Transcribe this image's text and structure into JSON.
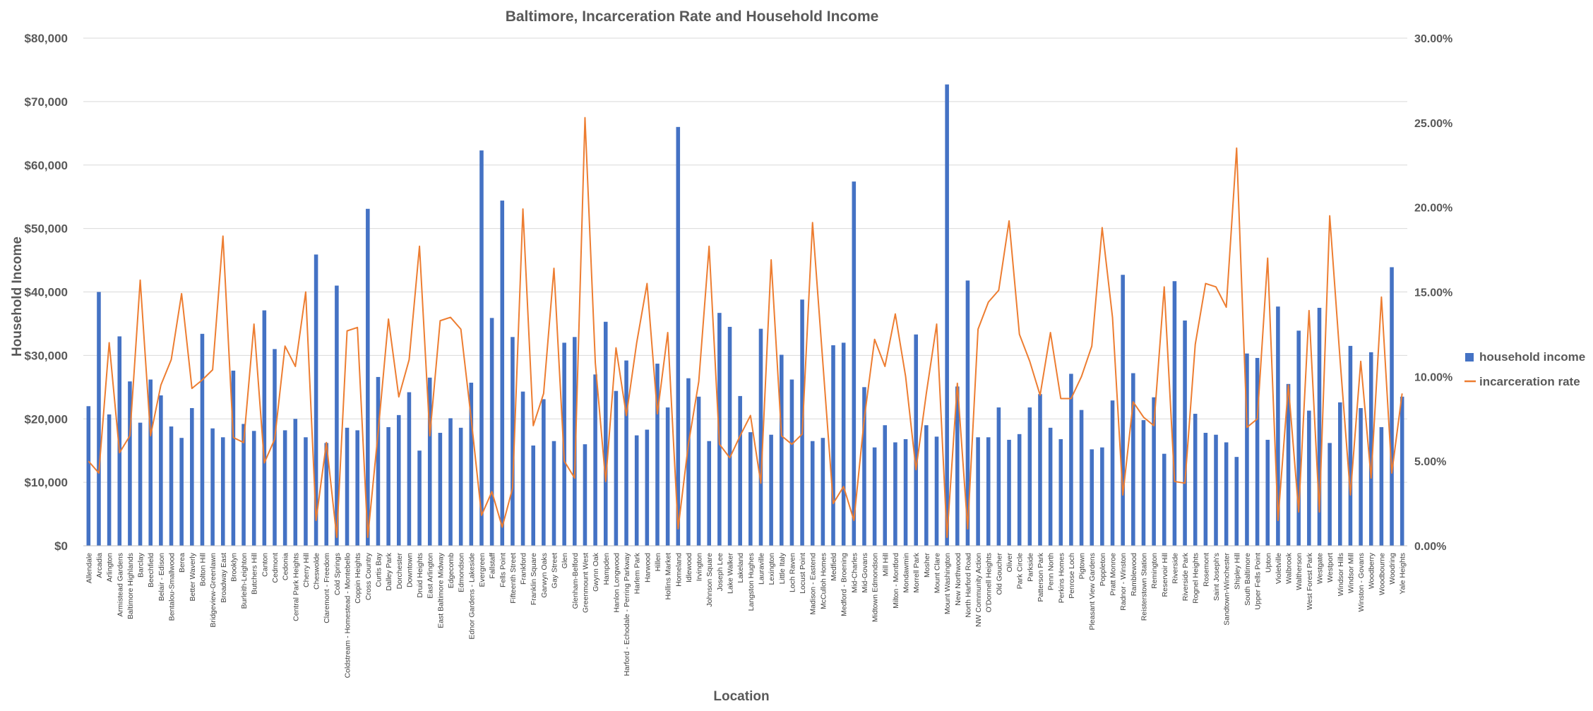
{
  "chart_data": {
    "type": "bar",
    "title": "Baltimore, Incarceration Rate and Household Income",
    "xlabel": "Location",
    "ylabel": "Household Income",
    "ylim": [
      0,
      80000
    ],
    "y2lim": [
      0,
      0.3
    ],
    "yticks": [
      "$0",
      "$10,000",
      "$20,000",
      "$30,000",
      "$40,000",
      "$50,000",
      "$60,000",
      "$70,000",
      "$80,000"
    ],
    "y2ticks": [
      "0.00%",
      "5.00%",
      "10.00%",
      "15.00%",
      "20.00%",
      "25.00%",
      "30.00%"
    ],
    "grid": true,
    "legend_position": "right",
    "categories": [
      "Allendale",
      "Arcadia",
      "Arlington",
      "Armistead Gardens",
      "Baltimore Highlands",
      "Barclay",
      "Beechfield",
      "Belair - Edison",
      "Bentalou-Smallwood",
      "Berea",
      "Better Waverly",
      "Bolton Hill",
      "Bridgeview-Greenlawn",
      "Broadway East",
      "Brooklyn",
      "Burleith-Leighton",
      "Butchers Hill",
      "Canton",
      "Cedmont",
      "Cedonia",
      "Central Park Heights",
      "Cherry Hill",
      "Cheswolde",
      "Claremont - Freedom",
      "Cold Springs",
      "Coldstream - Homestead - Montebello",
      "Coppin Heights",
      "Cross Country",
      "Curtis Bay",
      "Dalley Park",
      "Dorchester",
      "Downtown",
      "Druid Heights",
      "East Arlington",
      "East Baltimore Midway",
      "Edgecomb",
      "Edmondson",
      "Ednor Gardens - Lakeside",
      "Evergreen",
      "Fallstaff",
      "Fells Point",
      "Fifteenth Street",
      "Frankford",
      "Franklin Square",
      "Garwyn Oaks",
      "Gay Street",
      "Glen",
      "Glenham-Belford",
      "Greenmount West",
      "Gwynn Oak",
      "Hampden",
      "Hanlon Longwood",
      "Harford - Echodale - Perring Parkway",
      "Harlem Park",
      "Harwood",
      "Hillen",
      "Hollins Market",
      "Homeland",
      "Idlewood",
      "Irvington",
      "Johnson Square",
      "Joseph Lee",
      "Lake Walker",
      "Lakeland",
      "Langston Hughes",
      "Lauraville",
      "Lexington",
      "Little Italy",
      "Loch Raven",
      "Locust Point",
      "Madison - Eastend",
      "McCulloh Homes",
      "Medfield",
      "Medford - Broening",
      "Mid-Charles",
      "Mid-Govans",
      "Midtown Edmondson",
      "Mill Hill",
      "Milton - Montford",
      "Mondawmin",
      "Morrell Park",
      "Mosher",
      "Mount Clare",
      "Mount Washington",
      "New Northwood",
      "North Harford Road",
      "NW Community Action",
      "O'Donnell Heights",
      "Old Goucher",
      "Oliver",
      "Park Circle",
      "Parkside",
      "Patterson Park",
      "Penn North",
      "Perkins Homes",
      "Penrose Loch",
      "Pigtown",
      "Pleasant View Gardens",
      "Poppleton",
      "Pratt Monroe",
      "Radnor - Winston",
      "Ramblewood",
      "Reisterstown Station",
      "Remington",
      "Reservoir Hill",
      "Riverside",
      "Riverside Park",
      "Rognel Heights",
      "Rosemont",
      "Saint Joseph's",
      "Sandtown-Winchester",
      "Shipley Hill",
      "South Baltimore",
      "Upper Fells Point",
      "Upton",
      "Violetville",
      "Walbrook",
      "Waltherson",
      "West Forest Park",
      "Westgate",
      "Westport",
      "Windsor Hills",
      "Windsor Mill",
      "Winston - Govans",
      "Woodberry",
      "Woodbourne",
      "Woodring",
      "Yale Heights"
    ],
    "series": [
      {
        "name": "household income",
        "axis": "left",
        "color": "#4472C4",
        "values": [
          22000,
          40000,
          20700,
          33000,
          25900,
          19400,
          26200,
          23700,
          18800,
          17000,
          21700,
          33400,
          18500,
          17100,
          27600,
          19200,
          18100,
          37100,
          31000,
          18200,
          20000,
          17100,
          45900,
          16200,
          41000,
          18600,
          18200,
          53100,
          26600,
          18700,
          20600,
          24200,
          15000,
          26500,
          17800,
          20100,
          18600,
          25700,
          62300,
          35900,
          54400,
          32900,
          24300,
          15800,
          23100,
          16500,
          32000,
          32900,
          16000,
          27000,
          35300,
          24400,
          29200,
          17400,
          18300,
          28700,
          21800,
          66000,
          26400,
          23500,
          16500,
          36700,
          34500,
          23600,
          17900,
          34200,
          17500,
          30100,
          26200,
          38800,
          16500,
          17000,
          31600,
          32000,
          57400,
          25000,
          15500,
          19000,
          16300,
          16800,
          33300,
          19000,
          17200,
          72700,
          25100,
          41800,
          17100,
          17100,
          21800,
          16700,
          17600,
          21800,
          23900,
          18600,
          16800,
          27100,
          21400,
          15200,
          15500,
          22900,
          42700,
          27200,
          19800,
          23400,
          14500,
          41700,
          35500,
          20800,
          17800,
          17500,
          16300,
          14000,
          30300,
          29600,
          16700,
          37700,
          25500,
          33900,
          21300,
          37500,
          16200,
          22600,
          31500,
          21700,
          30500,
          18700,
          43900,
          23500
        ]
      },
      {
        "name": "incarceration rate",
        "axis": "right",
        "color": "#ED7D31",
        "values": [
          0.05,
          0.043,
          0.12,
          0.055,
          0.065,
          0.157,
          0.065,
          0.095,
          0.11,
          0.149,
          0.093,
          0.098,
          0.104,
          0.183,
          0.064,
          0.061,
          0.131,
          0.049,
          0.063,
          0.118,
          0.106,
          0.15,
          0.015,
          0.061,
          0.005,
          0.127,
          0.129,
          0.005,
          0.067,
          0.134,
          0.088,
          0.11,
          0.177,
          0.065,
          0.133,
          0.135,
          0.128,
          0.075,
          0.018,
          0.032,
          0.011,
          0.034,
          0.199,
          0.071,
          0.09,
          0.164,
          0.05,
          0.04,
          0.253,
          0.108,
          0.038,
          0.117,
          0.077,
          0.12,
          0.155,
          0.078,
          0.126,
          0.01,
          0.06,
          0.097,
          0.177,
          0.06,
          0.052,
          0.065,
          0.077,
          0.037,
          0.169,
          0.065,
          0.06,
          0.066,
          0.191,
          0.108,
          0.025,
          0.035,
          0.015,
          0.075,
          0.122,
          0.106,
          0.137,
          0.1,
          0.045,
          0.09,
          0.131,
          0.005,
          0.096,
          0.01,
          0.128,
          0.144,
          0.151,
          0.192,
          0.125,
          0.109,
          0.089,
          0.126,
          0.087,
          0.087,
          0.1,
          0.118,
          0.188,
          0.135,
          0.03,
          0.085,
          0.076,
          0.071,
          0.153,
          0.038,
          0.037,
          0.119,
          0.155,
          0.153,
          0.141,
          0.235,
          0.07,
          0.075,
          0.17,
          0.015,
          0.095,
          0.02,
          0.139,
          0.02,
          0.195,
          0.11,
          0.03,
          0.109,
          0.04,
          0.147,
          0.043,
          0.09
        ]
      }
    ]
  }
}
